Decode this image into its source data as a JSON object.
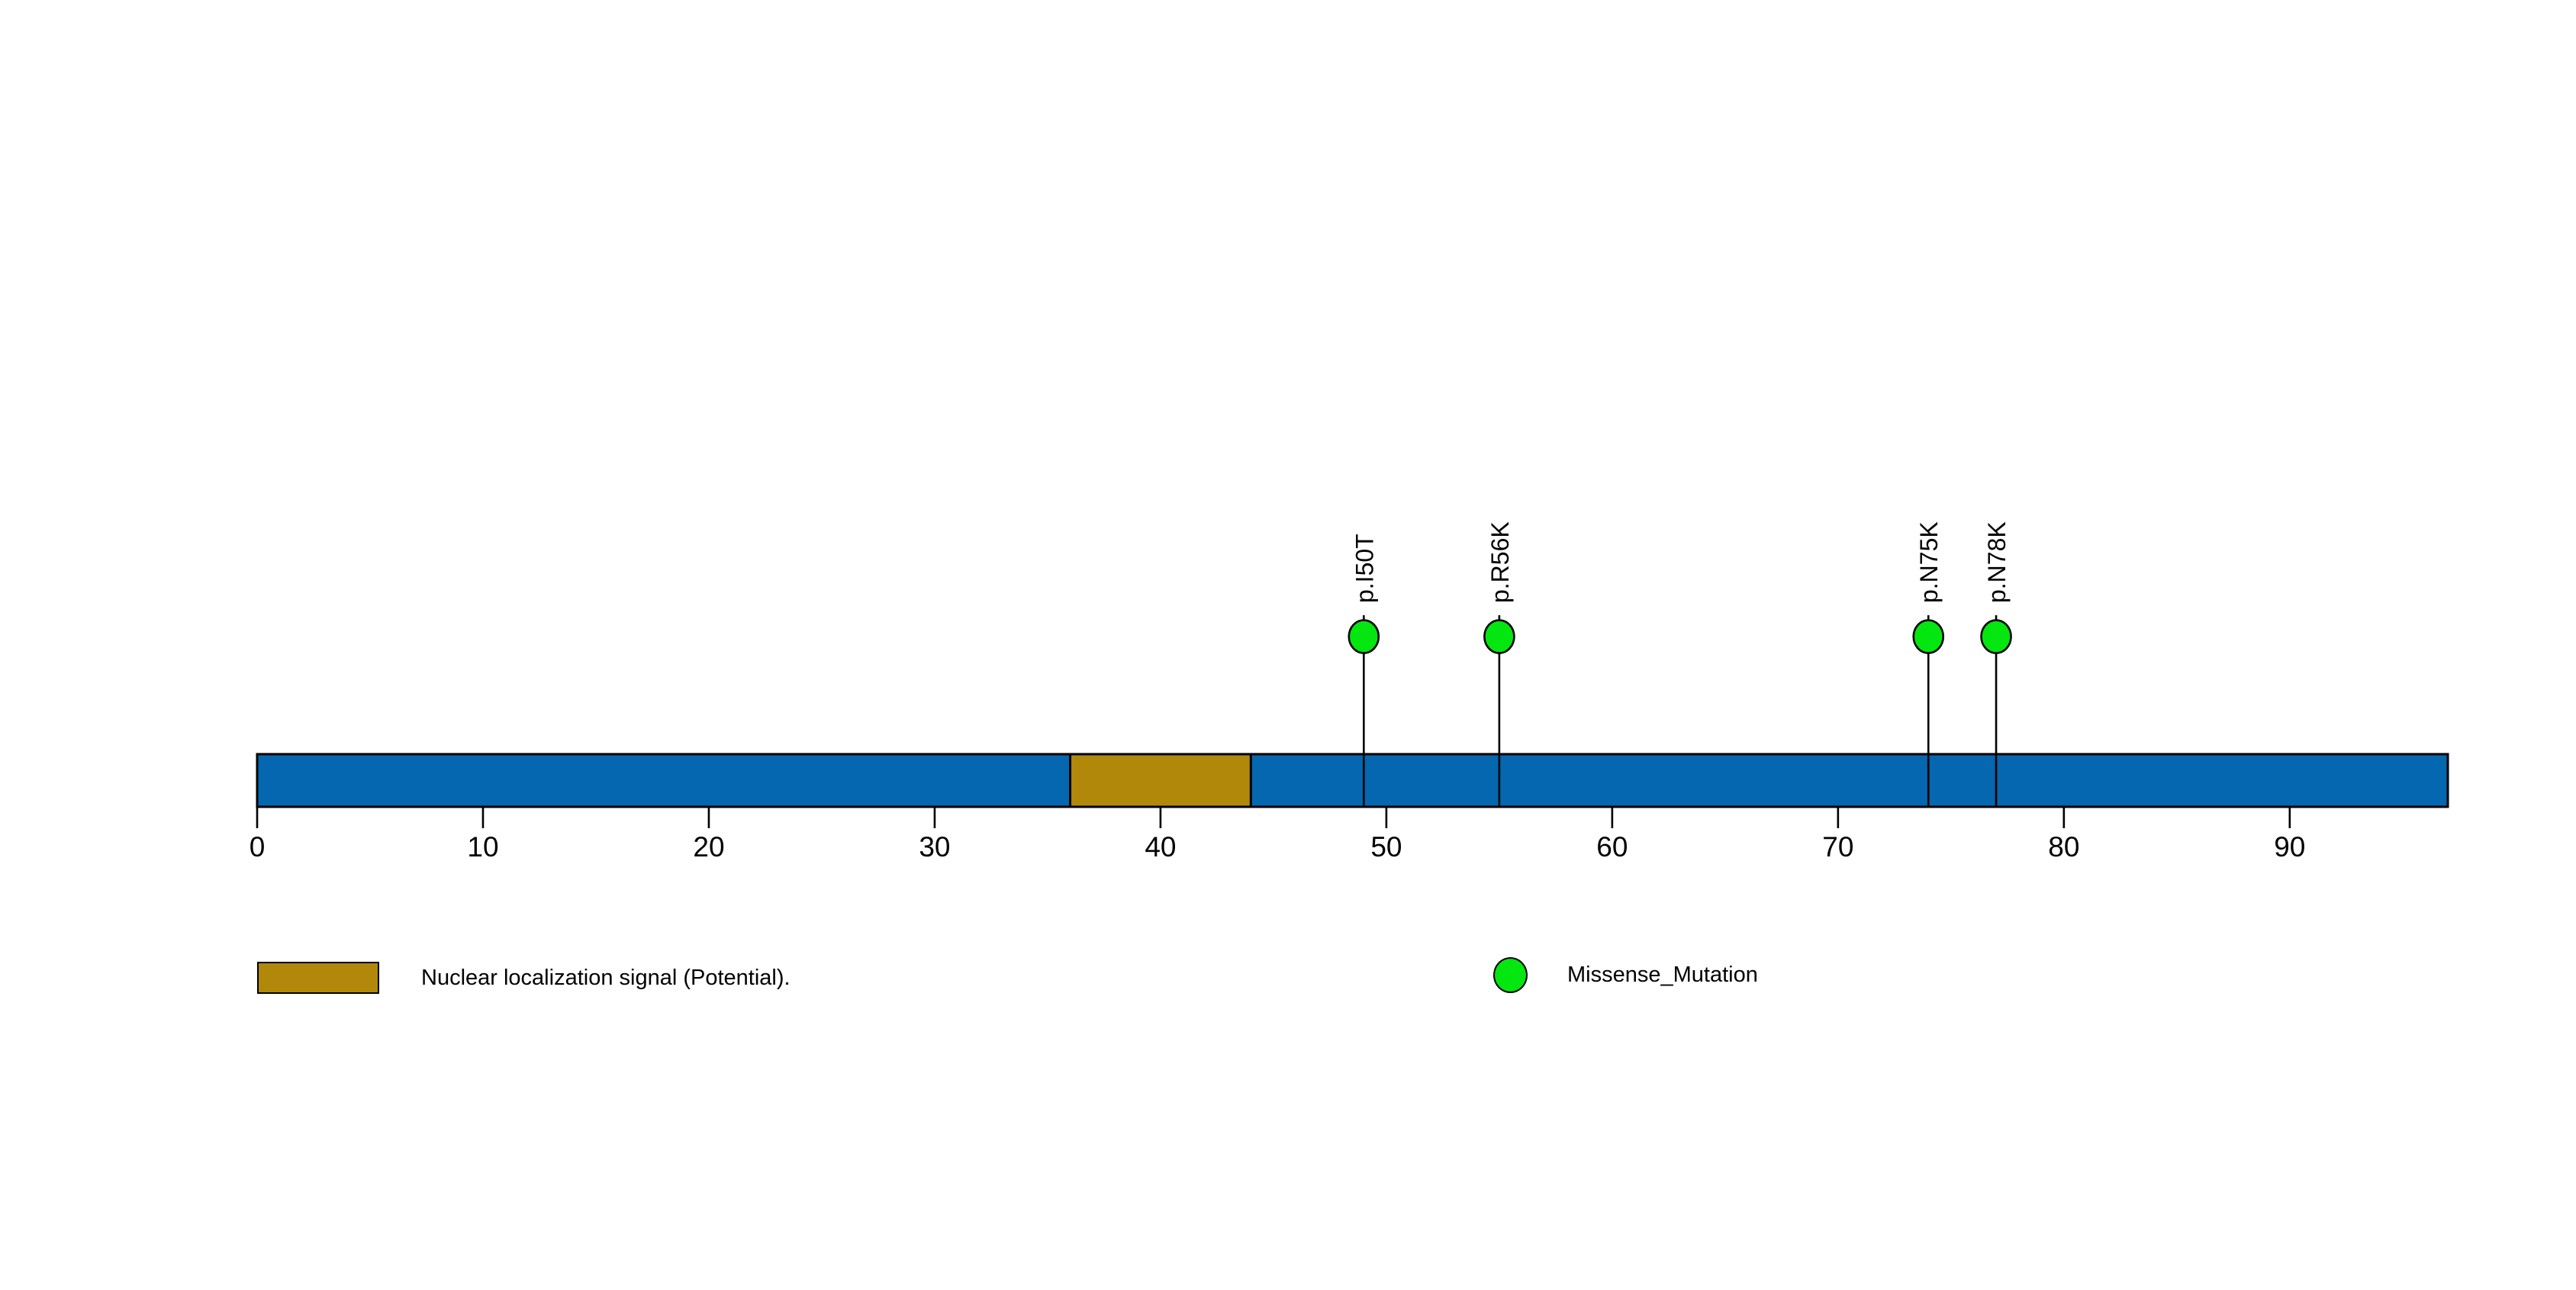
{
  "chart_data": {
    "type": "lollipop",
    "title": "",
    "protein_length": 97,
    "xlim": [
      0,
      97
    ],
    "x_ticks": [
      0,
      10,
      20,
      30,
      40,
      50,
      60,
      70,
      80,
      90
    ],
    "grid": false,
    "legend_position": "bottom",
    "colors": {
      "backbone": "#0467AF",
      "domain": "#B1880A",
      "missense": "#03E60F",
      "stroke": "#000000",
      "text": "#000000",
      "background": "#FFFFFF"
    },
    "backbone": {
      "start": 0,
      "end": 97,
      "color": "#0467AF"
    },
    "domains": [
      {
        "label": "Nuclear localization signal (Potential).",
        "start": 36,
        "end": 44,
        "color": "#B1880A"
      }
    ],
    "mutations": [
      {
        "label": "p.I50T",
        "position": 50,
        "plot_x": 49,
        "type": "Missense_Mutation",
        "color": "#03E60F"
      },
      {
        "label": "p.R56K",
        "position": 56,
        "plot_x": 55,
        "type": "Missense_Mutation",
        "color": "#03E60F"
      },
      {
        "label": "p.N75K",
        "position": 75,
        "plot_x": 74,
        "type": "Missense_Mutation",
        "color": "#03E60F"
      },
      {
        "label": "p.N78K",
        "position": 78,
        "plot_x": 77,
        "type": "Missense_Mutation",
        "color": "#03E60F"
      }
    ],
    "legend": [
      {
        "marker": "rect",
        "color": "#B1880A",
        "label": "Nuclear localization signal (Potential)."
      },
      {
        "marker": "circle",
        "color": "#03E60F",
        "label": "Missense_Mutation"
      }
    ]
  }
}
